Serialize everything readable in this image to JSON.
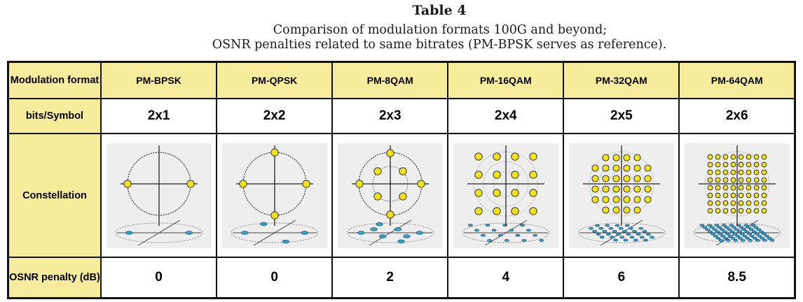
{
  "caption": {
    "title": "Table 4",
    "line1": "Comparison of modulation formats 100G and beyond;",
    "line2": "OSNR penalties related to same bitrates (PM-BPSK serves as reference)."
  },
  "row_labels": {
    "modulation": "Modulation format",
    "bits": "bits/Symbol",
    "constellation": "Constellation",
    "osnr": "OSNR penalty (dB)"
  },
  "columns": [
    {
      "format": "PM-BPSK",
      "bits": "2x1",
      "osnr": "0",
      "grid": "bpsk"
    },
    {
      "format": "PM-QPSK",
      "bits": "2x2",
      "osnr": "0",
      "grid": "qpsk"
    },
    {
      "format": "PM-8QAM",
      "bits": "2x3",
      "osnr": "2",
      "grid": "8qam"
    },
    {
      "format": "PM-16QAM",
      "bits": "2x4",
      "osnr": "4",
      "grid": "16qam"
    },
    {
      "format": "PM-32QAM",
      "bits": "2x5",
      "osnr": "6",
      "grid": "32qam"
    },
    {
      "format": "PM-64QAM",
      "bits": "2x6",
      "osnr": "8.5",
      "grid": "64qam"
    }
  ],
  "colors": {
    "header_bg": "#f7ec9c",
    "point_yellow": "#f2e316",
    "point_blue": "#2aa6c8"
  }
}
